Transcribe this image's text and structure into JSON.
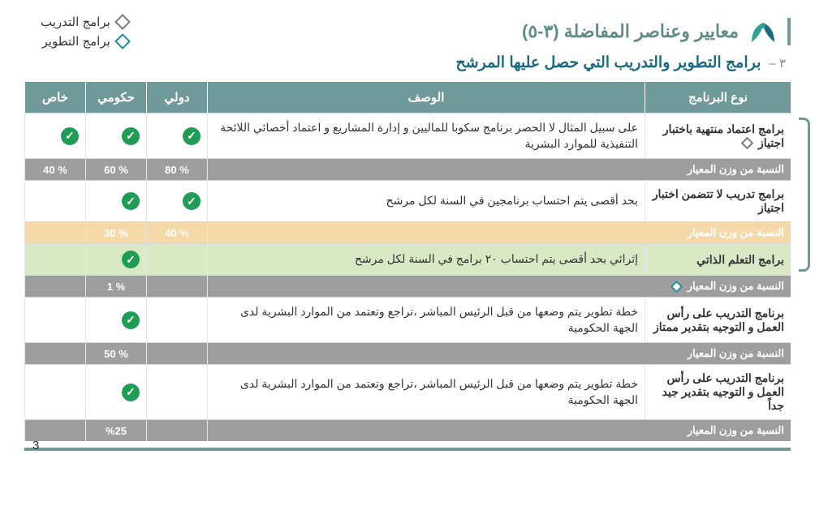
{
  "colors": {
    "header_bg": "#6f9a99",
    "subtitle": "#1a6b82",
    "weight_bg": "#9e9e9e",
    "check_bg": "#1f9d55",
    "hl_orange": "#f6d9a8",
    "hl_green": "#d9e8c5"
  },
  "title": "معايير وعناصر المفاضلة (٣-٥)",
  "subtitle_num": "٣ –",
  "subtitle": "برامج التطوير والتدريب التي حصل عليها المرشح",
  "legend": {
    "training": "برامج التدريب",
    "development": "برامج التطوير"
  },
  "headers": {
    "type": "نوع البرنامج",
    "desc": "الوصف",
    "intl": "دولي",
    "gov": "حكومي",
    "priv": "خاص"
  },
  "weight_label": "النسبة من وزن المعيار",
  "rows": [
    {
      "kind": "data",
      "type": "برامج اعتماد منتهية باختبار اجتياز",
      "marker": "gray",
      "desc": "على سبيل المثال لا الحصر برنامج سكوبا للماليين و إدارة المشاريع و اعتماد أخصائي اللائحة التنفيذية للموارد البشرية",
      "intl": true,
      "gov": true,
      "priv": true
    },
    {
      "kind": "weight",
      "intl_pct": "% 80",
      "gov_pct": "% 60",
      "priv_pct": "% 40"
    },
    {
      "kind": "data",
      "type": "برامج تدريب لا تتضمن اختبار اجتياز",
      "marker": "",
      "desc": "بحد أقصى يتم احتساب برنامجين في السنة لكل مرشح",
      "intl": true,
      "gov": true,
      "priv": false
    },
    {
      "kind": "weight",
      "hl": "orange",
      "intl_pct": "% 40",
      "gov_pct": "% 30",
      "priv_pct": ""
    },
    {
      "kind": "data",
      "hl": "green",
      "type": "برامج التعلم الذاتي",
      "marker": "",
      "desc": "إثرائي بحد أقصى يتم احتساب ٢٠ برامج في السنة لكل مرشح",
      "intl": false,
      "gov": true,
      "priv": false
    },
    {
      "kind": "weight",
      "marker": "teal",
      "intl_pct": "",
      "gov_pct": "% 1",
      "priv_pct": ""
    },
    {
      "kind": "data",
      "type": "برنامج التدريب على رأس العمل و التوجيه بتقدير ممتاز",
      "marker": "",
      "desc": "خطة تطوير يتم وضعها من قبل الرئيس المباشر ،تراجع وتعتمد من الموارد البشرية لدى الجهة الحكومية",
      "intl": false,
      "gov": true,
      "priv": false
    },
    {
      "kind": "weight",
      "intl_pct": "",
      "gov_pct": "% 50",
      "priv_pct": ""
    },
    {
      "kind": "data",
      "type": "برنامج التدريب على رأس العمل و التوجيه بتقدير جيد جداً",
      "marker": "",
      "desc": "خطة تطوير يتم وضعها من قبل الرئيس المباشر ،تراجع وتعتمد من الموارد البشرية لدى الجهة الحكومية",
      "intl": false,
      "gov": true,
      "priv": false
    },
    {
      "kind": "weight",
      "intl_pct": "",
      "gov_pct": "%25",
      "priv_pct": ""
    }
  ],
  "page_number": "3"
}
